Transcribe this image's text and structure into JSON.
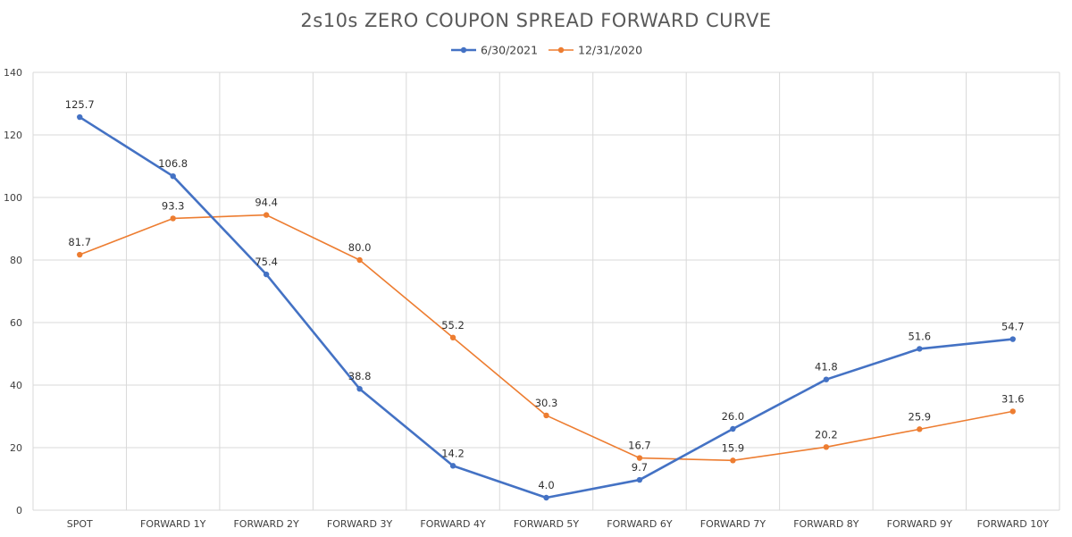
{
  "chart_data": {
    "type": "line",
    "title": "2s10s ZERO COUPON SPREAD FORWARD CURVE",
    "categories": [
      "SPOT",
      "FORWARD 1Y",
      "FORWARD 2Y",
      "FORWARD 3Y",
      "FORWARD 4Y",
      "FORWARD 5Y",
      "FORWARD 6Y",
      "FORWARD 7Y",
      "FORWARD 8Y",
      "FORWARD 9Y",
      "FORWARD 10Y"
    ],
    "series": [
      {
        "name": "6/30/2021",
        "color": "#4472C4",
        "values": [
          125.7,
          106.8,
          75.4,
          38.8,
          14.2,
          4.0,
          9.7,
          26.0,
          41.8,
          51.6,
          54.7
        ],
        "labels": [
          "125.7",
          "106.8",
          "75.4",
          "38.8",
          "14.2",
          "4.0",
          "9.7",
          "26.0",
          "41.8",
          "51.6",
          "54.7"
        ]
      },
      {
        "name": "12/31/2020",
        "color": "#ED7D31",
        "values": [
          81.7,
          93.3,
          94.4,
          80.0,
          55.2,
          30.3,
          16.7,
          15.9,
          20.2,
          25.9,
          31.6
        ],
        "labels": [
          "81.7",
          "93.3",
          "94.4",
          "80.0",
          "55.2",
          "30.3",
          "16.7",
          "15.9",
          "20.2",
          "25.9",
          "31.6"
        ]
      }
    ],
    "ylim": [
      0,
      140
    ],
    "yticks": [
      0,
      20,
      40,
      60,
      80,
      100,
      120,
      140
    ],
    "ytick_labels": [
      "0",
      "20",
      "40",
      "60",
      "80",
      "100",
      "120",
      "140"
    ],
    "xlabel": "",
    "ylabel": "",
    "grid": true,
    "legend": "top-center"
  }
}
